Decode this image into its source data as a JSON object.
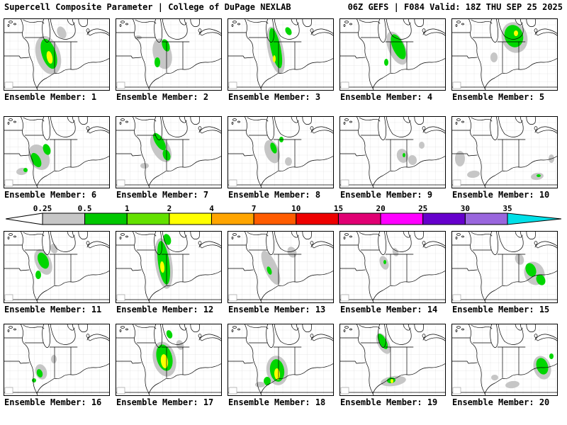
{
  "header": {
    "left": "Supercell Composite Parameter | College of DuPage NEXLAB",
    "right": "06Z GEFS | F084 Valid: 18Z THU SEP 25 2025"
  },
  "colorbar": {
    "ticks": [
      "0.25",
      "0.5",
      "1",
      "2",
      "4",
      "7",
      "10",
      "15",
      "20",
      "25",
      "30",
      "35"
    ],
    "under_arrow_color": "#ffffff",
    "over_arrow_color": "#00e0e8",
    "segment_colors": [
      "#c6c6c6",
      "#00c800",
      "#64e100",
      "#ffff00",
      "#ffa500",
      "#ff5c00",
      "#ee0000",
      "#e00073",
      "#ff00ff",
      "#6600cc",
      "#9966dd"
    ]
  },
  "map_colors": {
    "gray": "#c6c6c6",
    "green": "#00d600",
    "yellow": "#ffff00"
  },
  "members": [
    {
      "label": "Ensemble Member: 1",
      "blobs": [
        [
          "gray",
          63,
          52,
          17,
          28,
          -18
        ],
        [
          "gray",
          82,
          20,
          6,
          9,
          -25
        ],
        [
          "green",
          64,
          50,
          10,
          22,
          -18
        ],
        [
          "yellow",
          65,
          55,
          4,
          9,
          -12
        ]
      ]
    },
    {
      "label": "Ensemble Member: 2",
      "blobs": [
        [
          "gray",
          66,
          50,
          13,
          22,
          -15
        ],
        [
          "green",
          71,
          38,
          5,
          9,
          -20
        ],
        [
          "green",
          59,
          62,
          4,
          7,
          0
        ],
        [
          "gray",
          32,
          27,
          5,
          3,
          0
        ]
      ]
    },
    {
      "label": "Ensemble Member: 3",
      "blobs": [
        [
          "gray",
          68,
          45,
          11,
          34,
          -12
        ],
        [
          "green",
          68,
          42,
          7,
          29,
          -12
        ],
        [
          "green",
          86,
          18,
          4,
          6,
          -30
        ],
        [
          "yellow",
          66,
          57,
          2,
          5,
          0
        ]
      ]
    },
    {
      "label": "Ensemble Member: 4",
      "blobs": [
        [
          "gray",
          81,
          42,
          12,
          25,
          -24
        ],
        [
          "green",
          83,
          40,
          8,
          19,
          -24
        ],
        [
          "green",
          66,
          62,
          3,
          5,
          0
        ]
      ]
    },
    {
      "label": "Ensemble Member: 5",
      "blobs": [
        [
          "gray",
          89,
          27,
          18,
          22,
          -18
        ],
        [
          "green",
          88,
          25,
          13,
          16,
          -18
        ],
        [
          "yellow",
          91,
          21,
          3,
          4,
          0
        ],
        [
          "gray",
          60,
          55,
          5,
          7,
          0
        ]
      ]
    },
    {
      "label": "Ensemble Member: 6",
      "blobs": [
        [
          "gray",
          50,
          58,
          14,
          19,
          -28
        ],
        [
          "green",
          46,
          62,
          6,
          11,
          -28
        ],
        [
          "green",
          61,
          47,
          5,
          8,
          -20
        ],
        [
          "gray",
          26,
          78,
          8,
          5,
          -8
        ],
        [
          "green",
          31,
          76,
          3,
          3,
          0
        ]
      ]
    },
    {
      "label": "Ensemble Member: 7",
      "blobs": [
        [
          "gray",
          64,
          45,
          12,
          22,
          -30
        ],
        [
          "green",
          62,
          36,
          6,
          14,
          -32
        ],
        [
          "green",
          72,
          55,
          5,
          8,
          -20
        ],
        [
          "gray",
          41,
          70,
          6,
          4,
          0
        ]
      ]
    },
    {
      "label": "Ensemble Member: 8",
      "blobs": [
        [
          "gray",
          63,
          50,
          10,
          17,
          -20
        ],
        [
          "green",
          65,
          45,
          4,
          8,
          -20
        ],
        [
          "green",
          76,
          33,
          3,
          4,
          0
        ],
        [
          "gray",
          86,
          64,
          5,
          6,
          0
        ]
      ]
    },
    {
      "label": "Ensemble Member: 9",
      "blobs": [
        [
          "gray",
          89,
          56,
          8,
          10,
          -18
        ],
        [
          "gray",
          103,
          62,
          6,
          7,
          -10
        ],
        [
          "green",
          91,
          55,
          2,
          3,
          0
        ],
        [
          "gray",
          116,
          41,
          4,
          5,
          0
        ]
      ]
    },
    {
      "label": "Ensemble Member: 10",
      "blobs": [
        [
          "gray",
          12,
          60,
          7,
          11,
          0
        ],
        [
          "gray",
          31,
          82,
          9,
          5,
          -8
        ],
        [
          "gray",
          121,
          85,
          9,
          5,
          -8
        ],
        [
          "green",
          123,
          84,
          3,
          2,
          0
        ],
        [
          "gray",
          141,
          60,
          4,
          6,
          0
        ]
      ]
    },
    {
      "label": "Ensemble Member: 11",
      "blobs": [
        [
          "gray",
          56,
          44,
          11,
          19,
          -24
        ],
        [
          "green",
          56,
          42,
          7,
          12,
          -24
        ],
        [
          "green",
          49,
          62,
          4,
          6,
          0
        ],
        [
          "gray",
          71,
          25,
          5,
          7,
          -20
        ]
      ]
    },
    {
      "label": "Ensemble Member: 12",
      "blobs": [
        [
          "gray",
          68,
          46,
          12,
          36,
          -8
        ],
        [
          "green",
          68,
          45,
          8,
          31,
          -8
        ],
        [
          "yellow",
          66,
          51,
          3,
          8,
          -5
        ],
        [
          "green",
          73,
          12,
          5,
          8,
          -18
        ]
      ]
    },
    {
      "label": "Ensemble Member: 13",
      "blobs": [
        [
          "gray",
          61,
          52,
          9,
          26,
          -24
        ],
        [
          "green",
          59,
          56,
          3,
          6,
          -20
        ],
        [
          "gray",
          91,
          30,
          6,
          8,
          -28
        ]
      ]
    },
    {
      "label": "Ensemble Member: 14",
      "blobs": [
        [
          "gray",
          63,
          45,
          6,
          10,
          -20
        ],
        [
          "gray",
          79,
          30,
          4,
          6,
          -20
        ],
        [
          "green",
          64,
          44,
          2,
          3,
          0
        ]
      ]
    },
    {
      "label": "Ensemble Member: 15",
      "blobs": [
        [
          "gray",
          117,
          60,
          14,
          17,
          -24
        ],
        [
          "green",
          112,
          55,
          7,
          10,
          -24
        ],
        [
          "green",
          126,
          69,
          6,
          8,
          -28
        ],
        [
          "gray",
          96,
          40,
          6,
          8,
          -20
        ]
      ]
    },
    {
      "label": "Ensemble Member: 16",
      "blobs": [
        [
          "gray",
          53,
          68,
          8,
          11,
          -18
        ],
        [
          "green",
          51,
          70,
          4,
          6,
          -18
        ],
        [
          "green",
          43,
          80,
          3,
          3,
          0
        ],
        [
          "gray",
          71,
          50,
          4,
          6,
          0
        ]
      ]
    },
    {
      "label": "Ensemble Member: 17",
      "blobs": [
        [
          "gray",
          69,
          50,
          16,
          25,
          -14
        ],
        [
          "green",
          69,
          48,
          11,
          19,
          -14
        ],
        [
          "yellow",
          69,
          53,
          5,
          10,
          -8
        ],
        [
          "green",
          76,
          15,
          4,
          6,
          -20
        ],
        [
          "gray",
          91,
          30,
          5,
          7,
          -20
        ]
      ]
    },
    {
      "label": "Ensemble Member: 18",
      "blobs": [
        [
          "gray",
          70,
          66,
          15,
          21,
          -8
        ],
        [
          "green",
          70,
          66,
          10,
          16,
          -8
        ],
        [
          "yellow",
          70,
          71,
          4,
          8,
          -4
        ],
        [
          "green",
          56,
          81,
          5,
          6,
          0
        ],
        [
          "gray",
          46,
          86,
          7,
          4,
          0
        ]
      ]
    },
    {
      "label": "Ensemble Member: 19",
      "blobs": [
        [
          "gray",
          62,
          28,
          8,
          16,
          -28
        ],
        [
          "green",
          61,
          25,
          5,
          12,
          -28
        ],
        [
          "gray",
          76,
          81,
          18,
          7,
          -8
        ],
        [
          "green",
          73,
          80,
          6,
          4,
          -8
        ],
        [
          "yellow",
          74,
          81,
          2,
          3,
          0
        ]
      ]
    },
    {
      "label": "Ensemble Member: 20",
      "blobs": [
        [
          "gray",
          128,
          62,
          12,
          17,
          -18
        ],
        [
          "green",
          128,
          60,
          8,
          12,
          -18
        ],
        [
          "gray",
          86,
          86,
          10,
          5,
          -8
        ],
        [
          "green",
          141,
          46,
          3,
          4,
          0
        ],
        [
          "gray",
          61,
          76,
          5,
          4,
          0
        ]
      ]
    }
  ]
}
